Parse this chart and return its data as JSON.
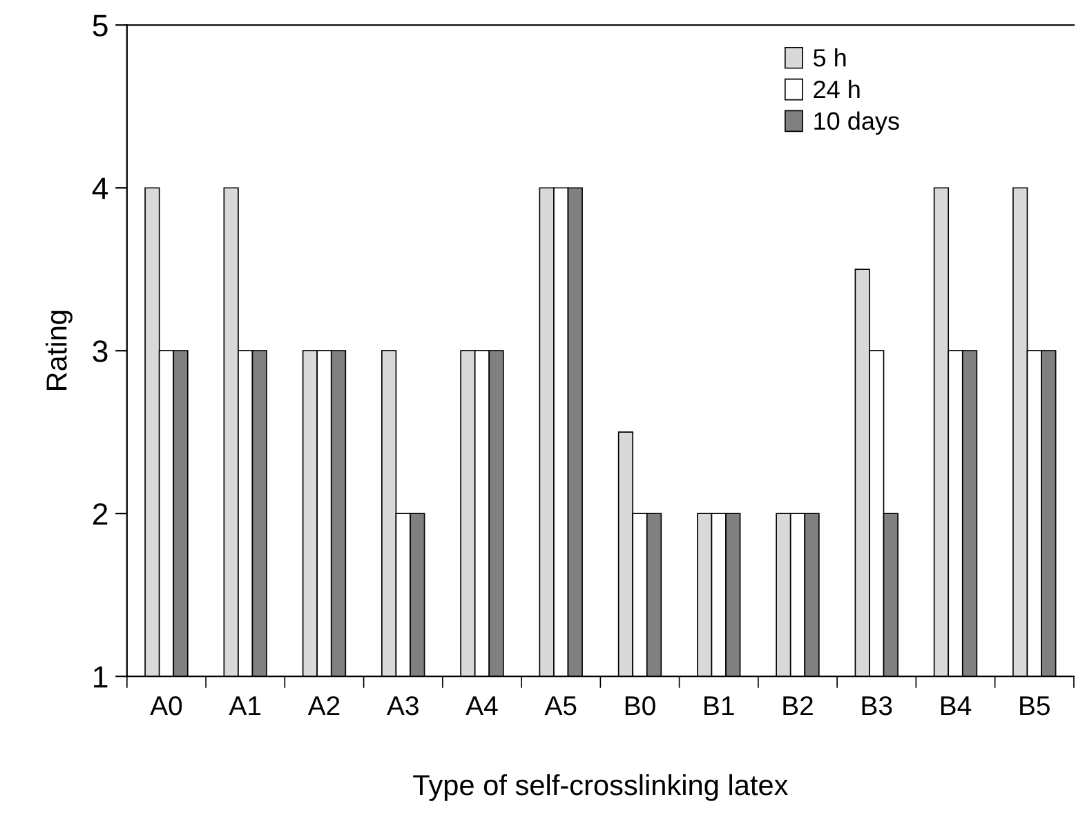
{
  "chart_data": {
    "type": "bar",
    "xlabel": "Type of self-crosslinking latex",
    "ylabel": "Rating",
    "categories": [
      "A0",
      "A1",
      "A2",
      "A3",
      "A4",
      "A5",
      "B0",
      "B1",
      "B2",
      "B3",
      "B4",
      "B5"
    ],
    "series": [
      {
        "name": "5 h",
        "color": "#d9d9d9",
        "values": [
          4,
          4,
          3,
          3,
          3,
          4,
          2.5,
          2,
          2,
          3.5,
          4,
          4
        ]
      },
      {
        "name": "24 h",
        "color": "#ffffff",
        "values": [
          3,
          3,
          3,
          2,
          3,
          4,
          2,
          2,
          2,
          3,
          3,
          3
        ]
      },
      {
        "name": "10 days",
        "color": "#808080",
        "values": [
          3,
          3,
          3,
          2,
          3,
          4,
          2,
          2,
          2,
          2,
          3,
          3
        ]
      }
    ],
    "ylim": [
      1,
      5
    ],
    "yticks": [
      1,
      2,
      3,
      4,
      5
    ],
    "grid": false,
    "legend": "top right"
  }
}
